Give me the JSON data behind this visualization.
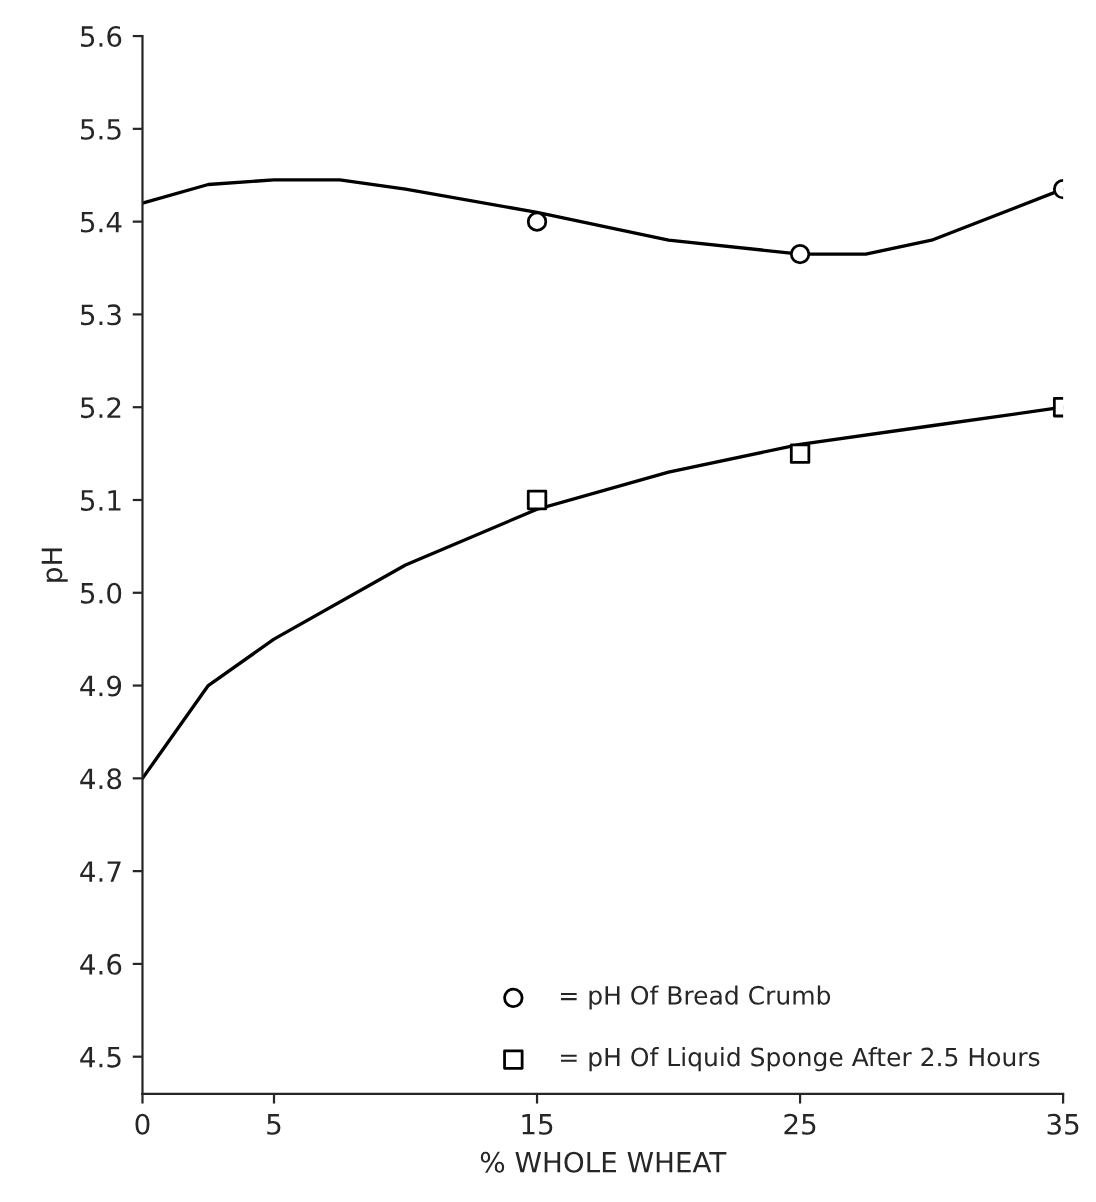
{
  "chart_data": {
    "type": "line",
    "xlabel": "% WHOLE WHEAT",
    "ylabel": "pH",
    "xlim": [
      0,
      35
    ],
    "xticks": [
      0,
      5,
      15,
      25,
      35
    ],
    "ylim": [
      4.46,
      5.6
    ],
    "yticks": [
      4.5,
      4.6,
      4.7,
      4.8,
      4.9,
      {
        "value": 5.0,
        "label": "5.0"
      },
      5.1,
      5.2,
      5.3,
      5.4,
      5.5,
      5.6
    ],
    "grid": false,
    "legend": "lower right",
    "series": [
      {
        "color": "#000000",
        "marker": "none",
        "x": [
          0,
          2.5,
          5,
          7.5,
          10,
          15,
          20,
          25,
          27.5,
          30,
          35
        ],
        "values": [
          5.42,
          5.44,
          5.445,
          5.445,
          5.435,
          5.41,
          5.38,
          5.365,
          5.365,
          5.38,
          5.435
        ]
      },
      {
        "color": "#000000",
        "marker": "none",
        "x": [
          0,
          2.5,
          5,
          10,
          15,
          20,
          25,
          30,
          35
        ],
        "values": [
          4.8,
          4.9,
          4.95,
          5.03,
          5.09,
          5.13,
          5.16,
          5.18,
          5.2
        ]
      },
      {
        "type": "scatter",
        "name": "= pH Of Bread Crumb",
        "color": "#000000",
        "marker": "circle",
        "x": [
          15,
          25,
          35
        ],
        "values": [
          5.4,
          5.365,
          5.435
        ]
      },
      {
        "type": "scatter",
        "name": "= pH Of Liquid Sponge After 2.5 Hours",
        "color": "#000000",
        "marker": "square",
        "x": [
          15,
          25,
          35
        ],
        "values": [
          5.1,
          5.15,
          5.2
        ]
      }
    ]
  }
}
